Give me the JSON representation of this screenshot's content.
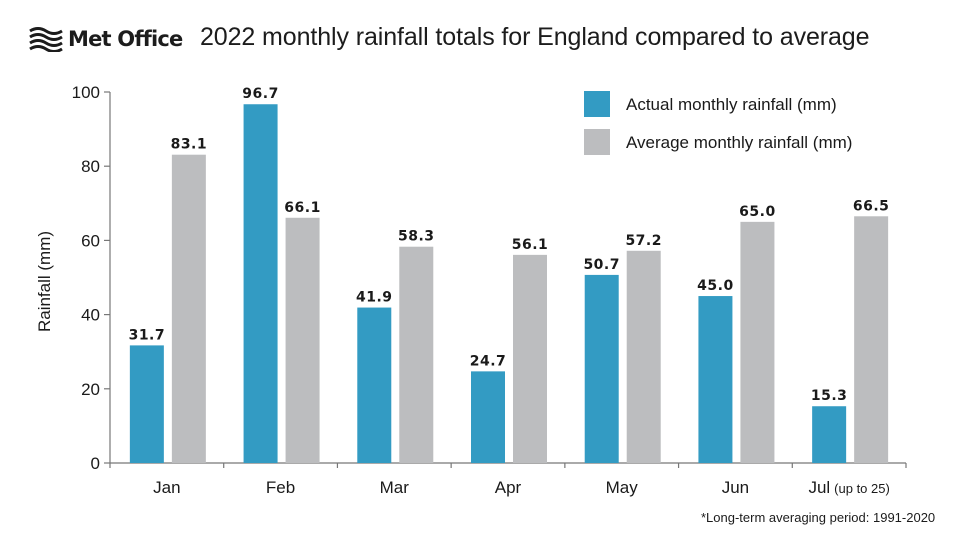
{
  "brand": {
    "logo_icon": "met-office-waves-icon",
    "name": "Met Office"
  },
  "colors": {
    "actual": "#339bc3",
    "average": "#bcbdbf",
    "axis": "#777777",
    "text": "#1a1a1a"
  },
  "footnote": "*Long-term averaging period: 1991-2020",
  "chart_data": {
    "type": "bar",
    "title": "2022 monthly rainfall totals for England compared to average",
    "xlabel": "",
    "ylabel": "Rainfall (mm)",
    "ylim": [
      0,
      100
    ],
    "yticks": [
      0,
      20,
      40,
      60,
      80,
      100
    ],
    "grid": false,
    "legend_position": "top-right",
    "categories": [
      "Jan",
      "Feb",
      "Mar",
      "Apr",
      "May",
      "Jun",
      "Jul"
    ],
    "category_notes": [
      "",
      "",
      "",
      "",
      "",
      "",
      "(up to 25)"
    ],
    "series": [
      {
        "name": "Actual monthly rainfall (mm)",
        "values": [
          31.7,
          96.7,
          41.9,
          24.7,
          50.7,
          45.0,
          15.3
        ],
        "labels": [
          "31.7",
          "96.7",
          "41.9",
          "24.7",
          "50.7",
          "45.0",
          "15.3"
        ]
      },
      {
        "name": "Average monthly rainfall (mm)",
        "values": [
          83.1,
          66.1,
          58.3,
          56.1,
          57.2,
          65.0,
          66.5
        ],
        "labels": [
          "83.1",
          "66.1",
          "58.3",
          "56.1",
          "57.2",
          "65.0",
          "66.5"
        ]
      }
    ]
  }
}
